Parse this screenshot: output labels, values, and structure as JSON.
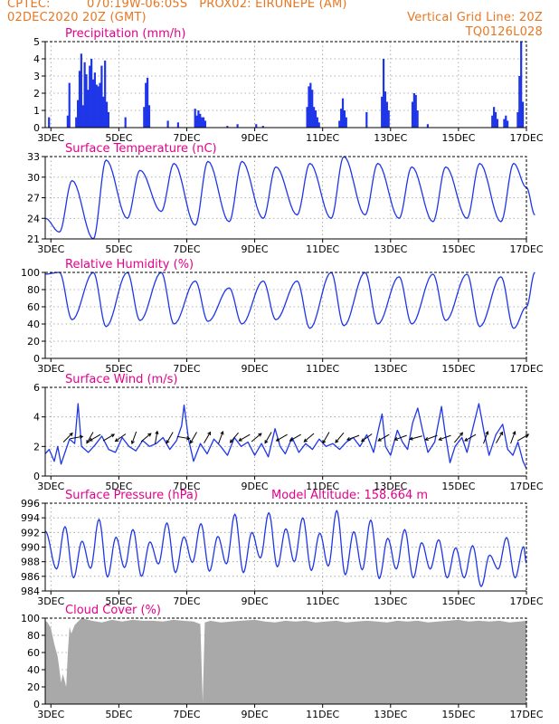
{
  "header": {
    "source": "CPTEC:",
    "location": "070:19W-06:05S   PROX02: EIRUNEPE (AM)",
    "init_time": "02DEC2020 20Z (GMT)",
    "grid_note": "Vertical Grid Line: 20Z",
    "run_code": "TQ0126L028"
  },
  "colors": {
    "header_text": "#e87722",
    "panel_title": "#e5008a",
    "series_line": "#1f36e8",
    "precip_bar": "#1f36e8",
    "cloud_fill": "#a9a9a9",
    "axis": "#000000",
    "grid": "#9a9a9a",
    "wind_arrow": "#000000"
  },
  "x_axis": {
    "day_start": 2.833,
    "day_end": 17.0,
    "tick_days": [
      3,
      5,
      7,
      9,
      11,
      13,
      15,
      17
    ],
    "tick_labels": [
      "3DEC",
      "5DEC",
      "7DEC",
      "9DEC",
      "11DEC",
      "13DEC",
      "15DEC",
      "17DEC"
    ]
  },
  "chart_data": [
    {
      "id": "precip",
      "type": "bar",
      "title": "Precipitation (mm/h)",
      "ylim": [
        0,
        5
      ],
      "yticks": [
        0,
        1,
        2,
        3,
        4,
        5
      ],
      "grid": true,
      "units": "mm/h",
      "events": [
        {
          "day": 2.95,
          "value": 0.6
        },
        {
          "day": 3.5,
          "value": 0.7
        },
        {
          "day": 3.55,
          "value": 2.6
        },
        {
          "day": 3.75,
          "value": 0.6
        },
        {
          "day": 3.8,
          "value": 1.6
        },
        {
          "day": 3.85,
          "value": 3.3
        },
        {
          "day": 3.9,
          "value": 4.3
        },
        {
          "day": 3.95,
          "value": 1.3
        },
        {
          "day": 4.0,
          "value": 3.8
        },
        {
          "day": 4.05,
          "value": 3.1
        },
        {
          "day": 4.1,
          "value": 2.2
        },
        {
          "day": 4.15,
          "value": 3.6
        },
        {
          "day": 4.2,
          "value": 4.0
        },
        {
          "day": 4.25,
          "value": 2.8
        },
        {
          "day": 4.3,
          "value": 3.2
        },
        {
          "day": 4.35,
          "value": 2.5
        },
        {
          "day": 4.4,
          "value": 2.4
        },
        {
          "day": 4.45,
          "value": 2.6
        },
        {
          "day": 4.5,
          "value": 3.6
        },
        {
          "day": 4.55,
          "value": 1.8
        },
        {
          "day": 4.6,
          "value": 3.9
        },
        {
          "day": 4.65,
          "value": 1.5
        },
        {
          "day": 4.7,
          "value": 0.9
        },
        {
          "day": 5.2,
          "value": 0.6
        },
        {
          "day": 5.75,
          "value": 1.2
        },
        {
          "day": 5.8,
          "value": 2.6
        },
        {
          "day": 5.85,
          "value": 2.9
        },
        {
          "day": 5.9,
          "value": 1.3
        },
        {
          "day": 6.45,
          "value": 0.4
        },
        {
          "day": 6.75,
          "value": 0.3
        },
        {
          "day": 7.25,
          "value": 1.1
        },
        {
          "day": 7.3,
          "value": 0.7
        },
        {
          "day": 7.35,
          "value": 1.0
        },
        {
          "day": 7.4,
          "value": 0.8
        },
        {
          "day": 7.45,
          "value": 0.6
        },
        {
          "day": 7.5,
          "value": 0.6
        },
        {
          "day": 7.55,
          "value": 0.4
        },
        {
          "day": 8.2,
          "value": 0.1
        },
        {
          "day": 8.5,
          "value": 0.2
        },
        {
          "day": 9.05,
          "value": 0.2
        },
        {
          "day": 9.25,
          "value": 0.1
        },
        {
          "day": 10.55,
          "value": 1.2
        },
        {
          "day": 10.6,
          "value": 2.4
        },
        {
          "day": 10.65,
          "value": 2.6
        },
        {
          "day": 10.7,
          "value": 2.2
        },
        {
          "day": 10.75,
          "value": 1.2
        },
        {
          "day": 10.8,
          "value": 1.0
        },
        {
          "day": 10.85,
          "value": 0.6
        },
        {
          "day": 10.9,
          "value": 0.3
        },
        {
          "day": 11.5,
          "value": 0.4
        },
        {
          "day": 11.55,
          "value": 1.1
        },
        {
          "day": 11.6,
          "value": 1.7
        },
        {
          "day": 11.65,
          "value": 1.0
        },
        {
          "day": 11.7,
          "value": 0.6
        },
        {
          "day": 12.3,
          "value": 0.9
        },
        {
          "day": 12.75,
          "value": 1.8
        },
        {
          "day": 12.8,
          "value": 4.0
        },
        {
          "day": 12.85,
          "value": 2.1
        },
        {
          "day": 12.9,
          "value": 1.5
        },
        {
          "day": 12.95,
          "value": 1.0
        },
        {
          "day": 13.65,
          "value": 1.5
        },
        {
          "day": 13.7,
          "value": 2.0
        },
        {
          "day": 13.75,
          "value": 1.9
        },
        {
          "day": 13.8,
          "value": 1.0
        },
        {
          "day": 14.1,
          "value": 0.2
        },
        {
          "day": 16.0,
          "value": 0.7
        },
        {
          "day": 16.05,
          "value": 1.2
        },
        {
          "day": 16.1,
          "value": 0.9
        },
        {
          "day": 16.15,
          "value": 0.5
        },
        {
          "day": 16.35,
          "value": 0.5
        },
        {
          "day": 16.4,
          "value": 0.7
        },
        {
          "day": 16.45,
          "value": 0.4
        },
        {
          "day": 16.75,
          "value": 0.9
        },
        {
          "day": 16.8,
          "value": 3.0
        },
        {
          "day": 16.85,
          "value": 5.0
        },
        {
          "day": 16.9,
          "value": 1.5
        }
      ]
    },
    {
      "id": "temperature",
      "type": "line",
      "title": "Surface Temperature (nC)",
      "ylim": [
        21,
        33
      ],
      "yticks": [
        21,
        24,
        27,
        30,
        33
      ],
      "grid": true,
      "model": {
        "kind": "diurnal",
        "peak_hour": 15,
        "trough_hour": 6
      },
      "daily_max": [
        29.5,
        32.5,
        31.0,
        32.0,
        32.3,
        32.3,
        31.5,
        32.0,
        33.0,
        32.0,
        31.5,
        31.5,
        32.0,
        32.0,
        31.5
      ],
      "daily_min": [
        22.0,
        21.0,
        24.0,
        25.0,
        23.0,
        23.5,
        24.0,
        24.5,
        24.0,
        24.5,
        24.0,
        23.5,
        24.0,
        23.5,
        24.5,
        24.0
      ],
      "start_value": 24.0,
      "end_value": 28.5
    },
    {
      "id": "humidity",
      "type": "line",
      "title": "Relative Humidity (%)",
      "ylim": [
        0,
        100
      ],
      "yticks": [
        0,
        20,
        40,
        60,
        80,
        100
      ],
      "grid": true,
      "model": {
        "kind": "diurnal-inverse",
        "min_hour": 15,
        "max_hour": 6
      },
      "daily_min": [
        45,
        37,
        44,
        40,
        43,
        40,
        45,
        35,
        38,
        40,
        40,
        44,
        37,
        35,
        40
      ],
      "daily_max": [
        100,
        100,
        100,
        100,
        90,
        82,
        90,
        90,
        100,
        100,
        95,
        98,
        98,
        95,
        100,
        100
      ],
      "start_value": 98,
      "end_value": 60
    },
    {
      "id": "wind",
      "type": "line",
      "title": "Surface Wind (m/s)",
      "ylim": [
        0,
        6
      ],
      "yticks": [
        0,
        2,
        4,
        6
      ],
      "grid": true,
      "speed_points": [
        [
          2.83,
          1.5
        ],
        [
          2.95,
          1.8
        ],
        [
          3.1,
          1.0
        ],
        [
          3.2,
          2.0
        ],
        [
          3.3,
          0.8
        ],
        [
          3.4,
          1.5
        ],
        [
          3.55,
          2.5
        ],
        [
          3.7,
          2.2
        ],
        [
          3.8,
          4.9
        ],
        [
          3.9,
          2.0
        ],
        [
          4.1,
          1.6
        ],
        [
          4.3,
          2.1
        ],
        [
          4.5,
          2.7
        ],
        [
          4.7,
          1.8
        ],
        [
          4.9,
          1.6
        ],
        [
          5.1,
          2.6
        ],
        [
          5.3,
          2.0
        ],
        [
          5.5,
          1.7
        ],
        [
          5.7,
          2.4
        ],
        [
          5.9,
          2.0
        ],
        [
          6.1,
          2.2
        ],
        [
          6.3,
          2.6
        ],
        [
          6.5,
          1.8
        ],
        [
          6.7,
          2.4
        ],
        [
          6.85,
          3.4
        ],
        [
          6.92,
          4.8
        ],
        [
          7.05,
          2.5
        ],
        [
          7.2,
          1.0
        ],
        [
          7.4,
          2.2
        ],
        [
          7.6,
          1.5
        ],
        [
          7.8,
          2.5
        ],
        [
          8.0,
          2.0
        ],
        [
          8.2,
          1.4
        ],
        [
          8.4,
          2.6
        ],
        [
          8.6,
          2.0
        ],
        [
          8.8,
          2.3
        ],
        [
          9.0,
          1.4
        ],
        [
          9.2,
          2.2
        ],
        [
          9.4,
          1.3
        ],
        [
          9.6,
          3.2
        ],
        [
          9.75,
          2.0
        ],
        [
          9.9,
          1.5
        ],
        [
          10.1,
          2.6
        ],
        [
          10.3,
          1.6
        ],
        [
          10.5,
          2.2
        ],
        [
          10.7,
          1.8
        ],
        [
          10.9,
          2.5
        ],
        [
          11.1,
          2.0
        ],
        [
          11.3,
          2.2
        ],
        [
          11.5,
          1.8
        ],
        [
          11.7,
          2.3
        ],
        [
          11.9,
          2.6
        ],
        [
          12.1,
          2.0
        ],
        [
          12.3,
          2.8
        ],
        [
          12.5,
          1.6
        ],
        [
          12.65,
          3.2
        ],
        [
          12.75,
          4.2
        ],
        [
          12.85,
          2.0
        ],
        [
          13.0,
          1.4
        ],
        [
          13.2,
          3.1
        ],
        [
          13.35,
          2.3
        ],
        [
          13.5,
          1.8
        ],
        [
          13.65,
          3.6
        ],
        [
          13.8,
          4.6
        ],
        [
          13.95,
          3.0
        ],
        [
          14.1,
          1.6
        ],
        [
          14.3,
          2.3
        ],
        [
          14.5,
          4.7
        ],
        [
          14.6,
          3.0
        ],
        [
          14.75,
          0.9
        ],
        [
          14.9,
          2.0
        ],
        [
          15.1,
          2.6
        ],
        [
          15.25,
          1.6
        ],
        [
          15.45,
          3.5
        ],
        [
          15.6,
          4.9
        ],
        [
          15.75,
          3.0
        ],
        [
          15.9,
          1.4
        ],
        [
          16.1,
          2.8
        ],
        [
          16.3,
          3.5
        ],
        [
          16.45,
          1.8
        ],
        [
          16.6,
          1.4
        ],
        [
          16.75,
          2.3
        ],
        [
          16.9,
          1.0
        ],
        [
          17.0,
          0.5
        ]
      ],
      "arrows": [
        {
          "day": 3.5,
          "dir_deg": 45
        },
        {
          "day": 3.75,
          "dir_deg": 10
        },
        {
          "day": 4.15,
          "dir_deg": -120
        },
        {
          "day": 4.3,
          "dir_deg": -150
        },
        {
          "day": 4.7,
          "dir_deg": 30
        },
        {
          "day": 5.05,
          "dir_deg": -145
        },
        {
          "day": 5.45,
          "dir_deg": -110
        },
        {
          "day": 5.8,
          "dir_deg": 40
        },
        {
          "day": 6.1,
          "dir_deg": 80
        },
        {
          "day": 6.5,
          "dir_deg": -120
        },
        {
          "day": 6.9,
          "dir_deg": -10
        },
        {
          "day": 7.2,
          "dir_deg": -120
        },
        {
          "day": 7.6,
          "dir_deg": 60
        },
        {
          "day": 8.0,
          "dir_deg": 70
        },
        {
          "day": 8.4,
          "dir_deg": -130
        },
        {
          "day": 8.7,
          "dir_deg": -150
        },
        {
          "day": 9.05,
          "dir_deg": 40
        },
        {
          "day": 9.4,
          "dir_deg": -120
        },
        {
          "day": 9.8,
          "dir_deg": -150
        },
        {
          "day": 10.2,
          "dir_deg": -150
        },
        {
          "day": 10.6,
          "dir_deg": -140
        },
        {
          "day": 11.1,
          "dir_deg": -120
        },
        {
          "day": 11.5,
          "dir_deg": -130
        },
        {
          "day": 11.9,
          "dir_deg": -160
        },
        {
          "day": 12.3,
          "dir_deg": -145
        },
        {
          "day": 12.8,
          "dir_deg": -150
        },
        {
          "day": 13.3,
          "dir_deg": -160
        },
        {
          "day": 13.75,
          "dir_deg": -165
        },
        {
          "day": 14.2,
          "dir_deg": -160
        },
        {
          "day": 14.6,
          "dir_deg": -160
        },
        {
          "day": 15.0,
          "dir_deg": 50
        },
        {
          "day": 15.35,
          "dir_deg": -150
        },
        {
          "day": 15.8,
          "dir_deg": 70
        },
        {
          "day": 16.2,
          "dir_deg": 60
        },
        {
          "day": 16.6,
          "dir_deg": 70
        },
        {
          "day": 16.9,
          "dir_deg": 30
        }
      ]
    },
    {
      "id": "pressure",
      "type": "line",
      "title": "Surface Pressure (hPa)",
      "subtitle": "Model Altitude: 158.664 m",
      "ylim": [
        984,
        996
      ],
      "yticks": [
        984,
        986,
        988,
        990,
        992,
        994,
        996
      ],
      "grid": true,
      "model": {
        "kind": "semidiurnal",
        "max_hours": [
          10,
          22
        ],
        "min_hours": [
          4,
          16
        ]
      },
      "daily_max": [
        992.8,
        993.8,
        992.4,
        993.3,
        993.2,
        994.5,
        994.7,
        994.0,
        995.0,
        993.7,
        992.4,
        991.0,
        990.2,
        991.3,
        992.0
      ],
      "daily_min": [
        985.8,
        985.9,
        986.0,
        986.5,
        986.7,
        986.5,
        987.3,
        986.8,
        986.2,
        985.7,
        985.8,
        985.8,
        984.6,
        985.8,
        985.0
      ],
      "start_value": 992.2,
      "end_value": 987.8
    },
    {
      "id": "cloud",
      "type": "area",
      "title": "Cloud Cover (%)",
      "ylim": [
        0,
        100
      ],
      "yticks": [
        0,
        20,
        40,
        60,
        80,
        100
      ],
      "grid": true,
      "points": [
        [
          2.83,
          97
        ],
        [
          2.9,
          95
        ],
        [
          3.0,
          88
        ],
        [
          3.1,
          70
        ],
        [
          3.2,
          55
        ],
        [
          3.25,
          40
        ],
        [
          3.3,
          25
        ],
        [
          3.35,
          35
        ],
        [
          3.4,
          28
        ],
        [
          3.45,
          20
        ],
        [
          3.5,
          60
        ],
        [
          3.55,
          90
        ],
        [
          3.6,
          82
        ],
        [
          3.7,
          92
        ],
        [
          3.8,
          96
        ],
        [
          3.9,
          100
        ],
        [
          4.2,
          97
        ],
        [
          4.5,
          95
        ],
        [
          4.8,
          98
        ],
        [
          5.1,
          96
        ],
        [
          5.4,
          98
        ],
        [
          5.7,
          97
        ],
        [
          6.0,
          97
        ],
        [
          6.3,
          96
        ],
        [
          6.6,
          98
        ],
        [
          6.9,
          97
        ],
        [
          7.2,
          96
        ],
        [
          7.4,
          93
        ],
        [
          7.47,
          2
        ],
        [
          7.53,
          95
        ],
        [
          7.7,
          97
        ],
        [
          8.0,
          95
        ],
        [
          8.3,
          96
        ],
        [
          8.6,
          97
        ],
        [
          9.0,
          98
        ],
        [
          9.3,
          96
        ],
        [
          9.6,
          95
        ],
        [
          9.9,
          97
        ],
        [
          10.2,
          96
        ],
        [
          10.5,
          97
        ],
        [
          10.8,
          95
        ],
        [
          11.1,
          96
        ],
        [
          11.4,
          97
        ],
        [
          11.7,
          95
        ],
        [
          12.0,
          96
        ],
        [
          12.3,
          97
        ],
        [
          12.6,
          96
        ],
        [
          12.9,
          95
        ],
        [
          13.2,
          97
        ],
        [
          13.5,
          96
        ],
        [
          13.8,
          97
        ],
        [
          14.1,
          95
        ],
        [
          14.4,
          96
        ],
        [
          14.7,
          97
        ],
        [
          15.0,
          98
        ],
        [
          15.3,
          96
        ],
        [
          15.6,
          97
        ],
        [
          15.9,
          96
        ],
        [
          16.2,
          97
        ],
        [
          16.5,
          95
        ],
        [
          16.8,
          96
        ],
        [
          17.0,
          97
        ]
      ]
    }
  ]
}
